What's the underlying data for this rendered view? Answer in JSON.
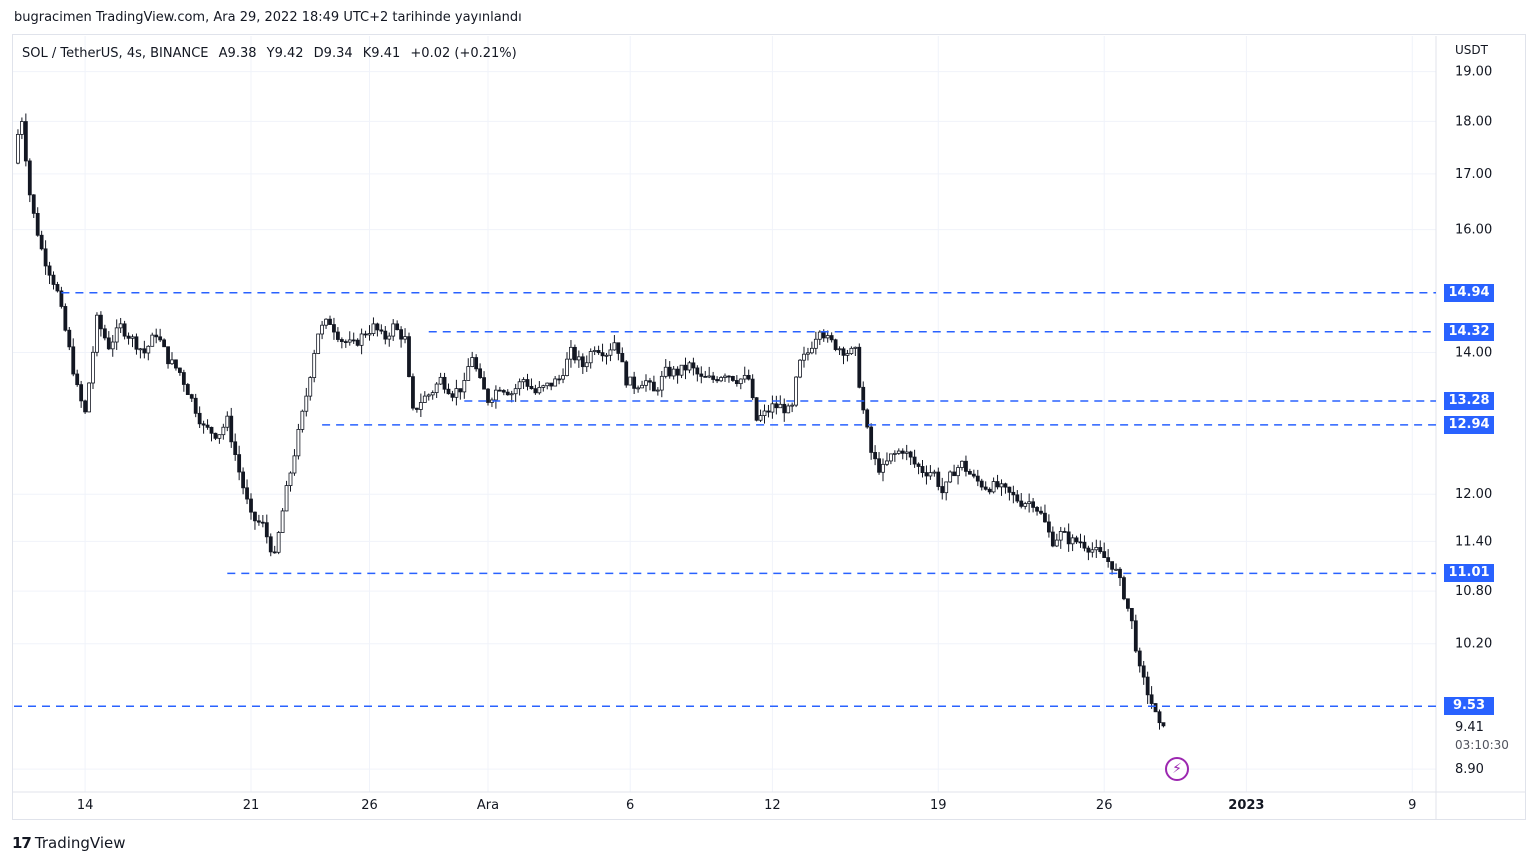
{
  "header": {
    "published_text": "bugracimen TradingView.com, Ara 29, 2022 18:49 UTC+2 tarihinde yayınlandı",
    "symbol": "SOL / TetherUS, 4s, BINANCE",
    "open": "A9.38",
    "high": "Y9.42",
    "low": "D9.34",
    "close": "K9.41",
    "change": "+0.02 (+0.21%)"
  },
  "axis": {
    "currency": "USDT",
    "countdown": "03:10:30",
    "last_price": "9.41"
  },
  "colors": {
    "candle": "#131722",
    "level_line": "#2962ff",
    "price_tag_bg": "#2962ff",
    "grid": "#f0f3fa",
    "bolt": "#9c27b0"
  },
  "icons": {
    "alert": "lightning-icon",
    "brand": "tradingview-logo"
  },
  "footer": {
    "brand": "TradingView"
  },
  "chart_data": {
    "type": "candlestick",
    "title": "SOL / TetherUS, 4s, BINANCE",
    "ylabel": "USDT",
    "ylim": [
      8.7,
      19.2
    ],
    "y_ticks": [
      "19.00",
      "18.00",
      "17.00",
      "16.00",
      "14.00",
      "12.00",
      "11.40",
      "10.80",
      "10.20",
      "8.90"
    ],
    "x_ticks": [
      {
        "label": "14",
        "day": 14
      },
      {
        "label": "21",
        "day": 21
      },
      {
        "label": "26",
        "day": 26
      },
      {
        "label": "Ara",
        "day": 31
      },
      {
        "label": "6",
        "day": 37
      },
      {
        "label": "12",
        "day": 43
      },
      {
        "label": "19",
        "day": 50
      },
      {
        "label": "26",
        "day": 57
      },
      {
        "label": "2023",
        "day": 63,
        "bold": true
      },
      {
        "label": "9",
        "day": 70
      }
    ],
    "x_range_days": [
      11,
      71
    ],
    "levels": [
      {
        "value": 14.94,
        "label": "14.94",
        "from_day": 13.0
      },
      {
        "value": 14.32,
        "label": "14.32",
        "from_day": 28.5
      },
      {
        "value": 13.28,
        "label": "13.28",
        "from_day": 30.0
      },
      {
        "value": 12.94,
        "label": "12.94",
        "from_day": 24.0
      },
      {
        "value": 11.01,
        "label": "11.01",
        "from_day": 20.0
      },
      {
        "value": 9.53,
        "label": "9.53",
        "from_day": 11.0
      }
    ],
    "path": [
      [
        11.0,
        17.2
      ],
      [
        11.3,
        18.2
      ],
      [
        11.7,
        16.5
      ],
      [
        12.2,
        15.6
      ],
      [
        12.8,
        15.0
      ],
      [
        13.3,
        14.1
      ],
      [
        13.7,
        13.4
      ],
      [
        14.0,
        13.1
      ],
      [
        14.5,
        14.5
      ],
      [
        15.0,
        14.1
      ],
      [
        15.5,
        14.4
      ],
      [
        16.0,
        14.2
      ],
      [
        16.5,
        14.0
      ],
      [
        17.0,
        14.3
      ],
      [
        17.5,
        13.9
      ],
      [
        18.0,
        13.7
      ],
      [
        18.5,
        13.3
      ],
      [
        19.0,
        12.9
      ],
      [
        19.6,
        12.8
      ],
      [
        20.0,
        13.0
      ],
      [
        20.5,
        12.3
      ],
      [
        21.0,
        11.7
      ],
      [
        21.5,
        11.6
      ],
      [
        22.0,
        11.2
      ],
      [
        22.4,
        11.9
      ],
      [
        22.8,
        12.5
      ],
      [
        23.3,
        13.3
      ],
      [
        23.8,
        14.3
      ],
      [
        24.3,
        14.5
      ],
      [
        24.8,
        14.2
      ],
      [
        25.3,
        14.1
      ],
      [
        25.8,
        14.3
      ],
      [
        26.2,
        14.4
      ],
      [
        26.6,
        14.2
      ],
      [
        27.0,
        14.4
      ],
      [
        27.5,
        14.2
      ],
      [
        27.8,
        13.1
      ],
      [
        28.2,
        13.3
      ],
      [
        28.6,
        13.4
      ],
      [
        29.0,
        13.6
      ],
      [
        29.5,
        13.4
      ],
      [
        30.0,
        13.5
      ],
      [
        30.3,
        14.0
      ],
      [
        30.6,
        13.6
      ],
      [
        31.0,
        13.3
      ],
      [
        31.5,
        13.5
      ],
      [
        32.0,
        13.4
      ],
      [
        32.5,
        13.6
      ],
      [
        33.0,
        13.4
      ],
      [
        33.5,
        13.5
      ],
      [
        34.0,
        13.6
      ],
      [
        34.5,
        14.0
      ],
      [
        35.0,
        13.8
      ],
      [
        35.5,
        14.1
      ],
      [
        36.0,
        14.0
      ],
      [
        36.4,
        14.2
      ],
      [
        36.8,
        13.6
      ],
      [
        37.2,
        13.5
      ],
      [
        37.6,
        13.6
      ],
      [
        38.0,
        13.4
      ],
      [
        38.5,
        13.7
      ],
      [
        39.0,
        13.7
      ],
      [
        39.5,
        13.8
      ],
      [
        40.0,
        13.6
      ],
      [
        40.5,
        13.6
      ],
      [
        41.0,
        13.7
      ],
      [
        41.5,
        13.6
      ],
      [
        42.0,
        13.6
      ],
      [
        42.3,
        13.0
      ],
      [
        42.7,
        13.1
      ],
      [
        43.0,
        13.2
      ],
      [
        43.4,
        13.2
      ],
      [
        43.8,
        13.1
      ],
      [
        44.1,
        13.8
      ],
      [
        44.5,
        14.0
      ],
      [
        45.0,
        14.4
      ],
      [
        45.3,
        14.2
      ],
      [
        45.7,
        14.1
      ],
      [
        46.2,
        14.0
      ],
      [
        46.5,
        14.0
      ],
      [
        46.8,
        13.2
      ],
      [
        47.2,
        12.5
      ],
      [
        47.6,
        12.3
      ],
      [
        48.0,
        12.5
      ],
      [
        48.5,
        12.6
      ],
      [
        49.0,
        12.4
      ],
      [
        49.4,
        12.3
      ],
      [
        49.8,
        12.3
      ],
      [
        50.2,
        12.0
      ],
      [
        50.6,
        12.3
      ],
      [
        51.0,
        12.4
      ],
      [
        51.5,
        12.2
      ],
      [
        52.0,
        12.1
      ],
      [
        52.5,
        12.1
      ],
      [
        53.0,
        12.0
      ],
      [
        53.5,
        11.9
      ],
      [
        54.0,
        11.9
      ],
      [
        54.4,
        11.7
      ],
      [
        54.8,
        11.4
      ],
      [
        55.2,
        11.5
      ],
      [
        55.6,
        11.4
      ],
      [
        56.0,
        11.4
      ],
      [
        56.5,
        11.3
      ],
      [
        57.0,
        11.2
      ],
      [
        57.4,
        11.1
      ],
      [
        57.8,
        10.8
      ],
      [
        58.2,
        10.4
      ],
      [
        58.5,
        9.9
      ],
      [
        58.8,
        9.7
      ],
      [
        59.1,
        9.5
      ],
      [
        59.3,
        9.3
      ],
      [
        59.6,
        9.41
      ]
    ]
  }
}
